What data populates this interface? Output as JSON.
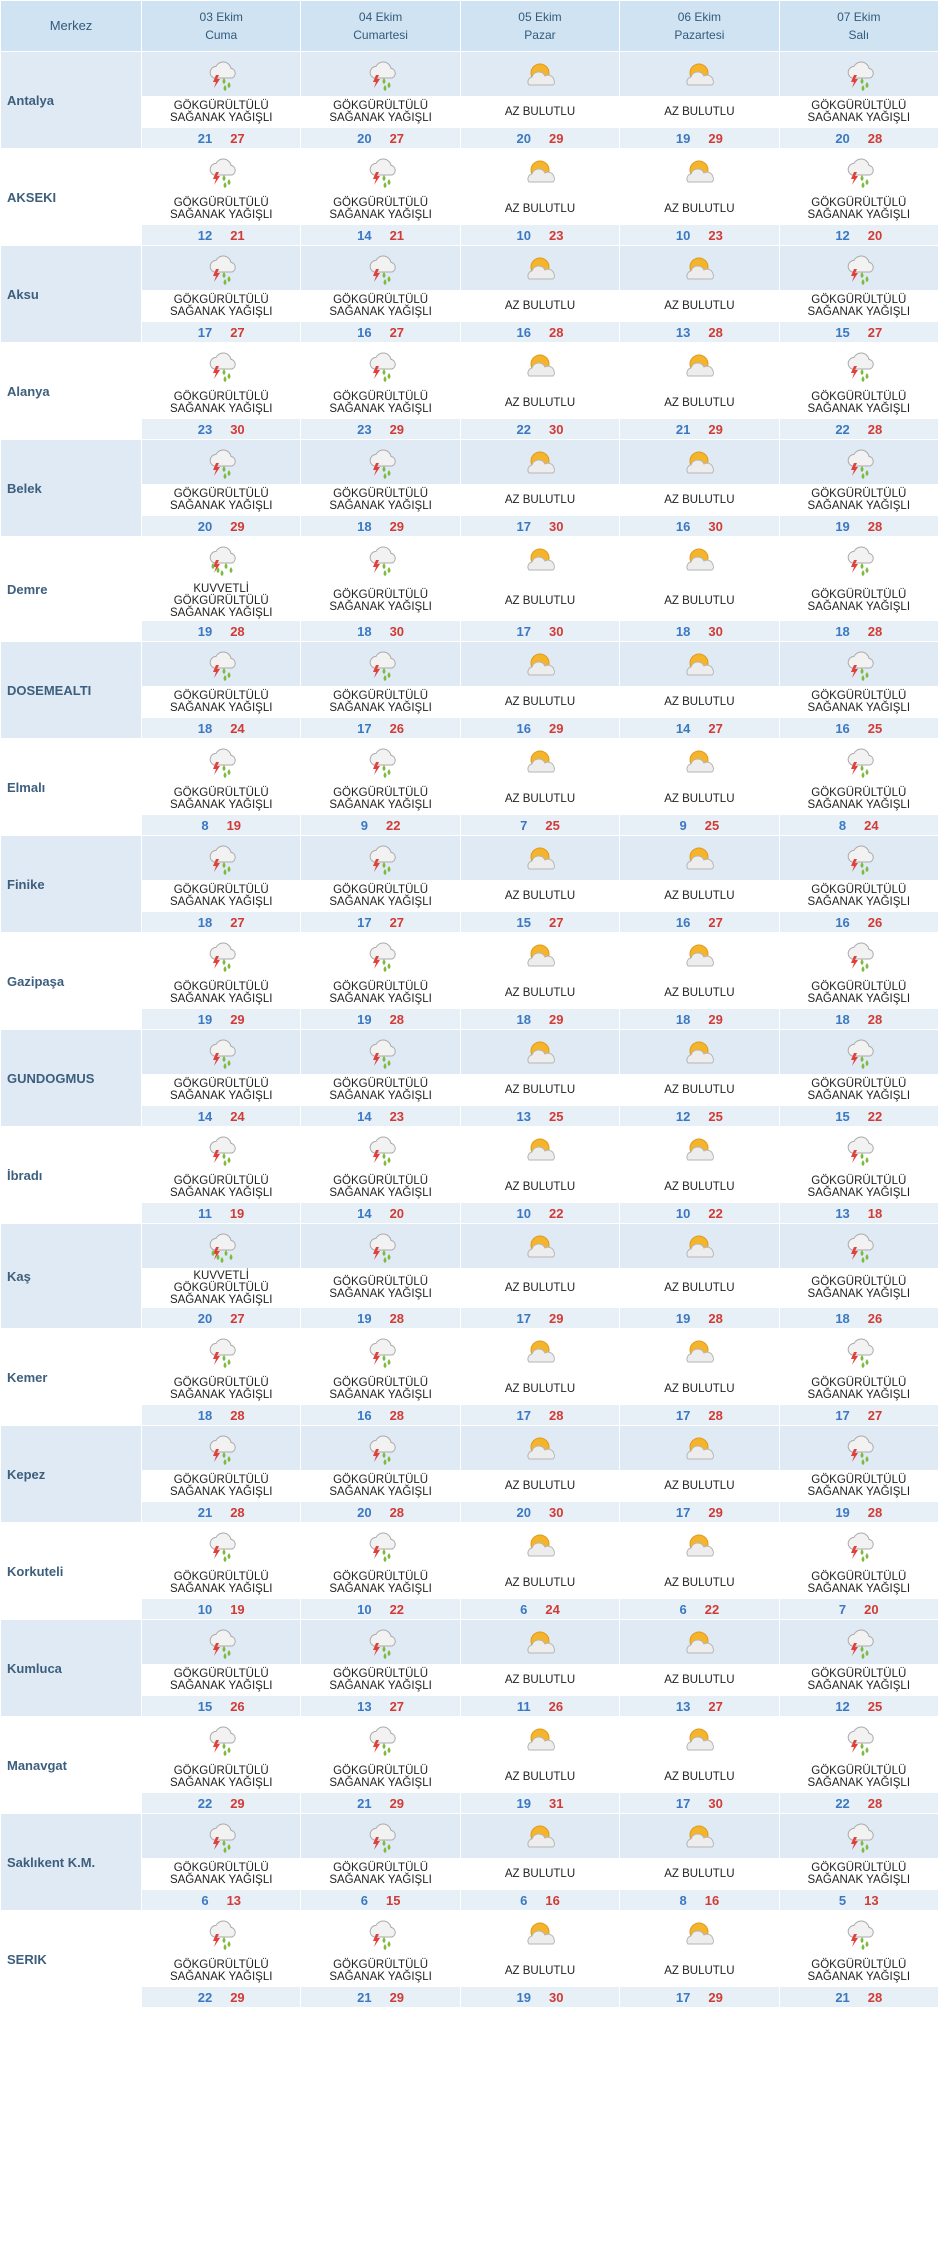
{
  "header": {
    "merkez_label": "Merkez",
    "days": [
      {
        "date": "03 Ekim",
        "name": "Cuma"
      },
      {
        "date": "04 Ekim",
        "name": "Cumartesi"
      },
      {
        "date": "05 Ekim",
        "name": "Pazar"
      },
      {
        "date": "06 Ekim",
        "name": "Pazartesi"
      },
      {
        "date": "07 Ekim",
        "name": "Salı"
      }
    ]
  },
  "conditions": {
    "gsy": {
      "icon": "thunderstorm-rain-icon",
      "lines": [
        "GÖKGÜRÜLTÜLÜ",
        "SAĞANAK YAĞIŞLI"
      ]
    },
    "ab": {
      "icon": "partly-cloudy-sun-icon",
      "lines": [
        "AZ BULUTLU"
      ]
    },
    "kgsy": {
      "icon": "heavy-thunderstorm-rain-icon",
      "lines": [
        "KUVVETLİ",
        "GÖKGÜRÜLTÜLÜ",
        "SAĞANAK YAĞIŞLI"
      ]
    }
  },
  "colors": {
    "min_temp": "#3a78c2",
    "max_temp": "#d03b35",
    "lightning": "#e0413a",
    "rain": "#7dbb3c",
    "sun": "#f4b42c"
  },
  "cities": [
    {
      "name": "Antalya",
      "days": [
        {
          "cond": "gsy",
          "min": "21",
          "max": "27"
        },
        {
          "cond": "gsy",
          "min": "20",
          "max": "27"
        },
        {
          "cond": "ab",
          "min": "20",
          "max": "29"
        },
        {
          "cond": "ab",
          "min": "19",
          "max": "29"
        },
        {
          "cond": "gsy",
          "min": "20",
          "max": "28"
        }
      ]
    },
    {
      "name": "AKSEKI",
      "days": [
        {
          "cond": "gsy",
          "min": "12",
          "max": "21"
        },
        {
          "cond": "gsy",
          "min": "14",
          "max": "21"
        },
        {
          "cond": "ab",
          "min": "10",
          "max": "23"
        },
        {
          "cond": "ab",
          "min": "10",
          "max": "23"
        },
        {
          "cond": "gsy",
          "min": "12",
          "max": "20"
        }
      ]
    },
    {
      "name": "Aksu",
      "days": [
        {
          "cond": "gsy",
          "min": "17",
          "max": "27"
        },
        {
          "cond": "gsy",
          "min": "16",
          "max": "27"
        },
        {
          "cond": "ab",
          "min": "16",
          "max": "28"
        },
        {
          "cond": "ab",
          "min": "13",
          "max": "28"
        },
        {
          "cond": "gsy",
          "min": "15",
          "max": "27"
        }
      ]
    },
    {
      "name": "Alanya",
      "days": [
        {
          "cond": "gsy",
          "min": "23",
          "max": "30"
        },
        {
          "cond": "gsy",
          "min": "23",
          "max": "29"
        },
        {
          "cond": "ab",
          "min": "22",
          "max": "30"
        },
        {
          "cond": "ab",
          "min": "21",
          "max": "29"
        },
        {
          "cond": "gsy",
          "min": "22",
          "max": "28"
        }
      ]
    },
    {
      "name": "Belek",
      "days": [
        {
          "cond": "gsy",
          "min": "20",
          "max": "29"
        },
        {
          "cond": "gsy",
          "min": "18",
          "max": "29"
        },
        {
          "cond": "ab",
          "min": "17",
          "max": "30"
        },
        {
          "cond": "ab",
          "min": "16",
          "max": "30"
        },
        {
          "cond": "gsy",
          "min": "19",
          "max": "28"
        }
      ]
    },
    {
      "name": "Demre",
      "days": [
        {
          "cond": "kgsy",
          "min": "19",
          "max": "28"
        },
        {
          "cond": "gsy",
          "min": "18",
          "max": "30"
        },
        {
          "cond": "ab",
          "min": "17",
          "max": "30"
        },
        {
          "cond": "ab",
          "min": "18",
          "max": "30"
        },
        {
          "cond": "gsy",
          "min": "18",
          "max": "28"
        }
      ]
    },
    {
      "name": "DOSEMEALTI",
      "days": [
        {
          "cond": "gsy",
          "min": "18",
          "max": "24"
        },
        {
          "cond": "gsy",
          "min": "17",
          "max": "26"
        },
        {
          "cond": "ab",
          "min": "16",
          "max": "29"
        },
        {
          "cond": "ab",
          "min": "14",
          "max": "27"
        },
        {
          "cond": "gsy",
          "min": "16",
          "max": "25"
        }
      ]
    },
    {
      "name": "Elmalı",
      "days": [
        {
          "cond": "gsy",
          "min": "8",
          "max": "19"
        },
        {
          "cond": "gsy",
          "min": "9",
          "max": "22"
        },
        {
          "cond": "ab",
          "min": "7",
          "max": "25"
        },
        {
          "cond": "ab",
          "min": "9",
          "max": "25"
        },
        {
          "cond": "gsy",
          "min": "8",
          "max": "24"
        }
      ]
    },
    {
      "name": "Finike",
      "days": [
        {
          "cond": "gsy",
          "min": "18",
          "max": "27"
        },
        {
          "cond": "gsy",
          "min": "17",
          "max": "27"
        },
        {
          "cond": "ab",
          "min": "15",
          "max": "27"
        },
        {
          "cond": "ab",
          "min": "16",
          "max": "27"
        },
        {
          "cond": "gsy",
          "min": "16",
          "max": "26"
        }
      ]
    },
    {
      "name": "Gazipaşa",
      "days": [
        {
          "cond": "gsy",
          "min": "19",
          "max": "29"
        },
        {
          "cond": "gsy",
          "min": "19",
          "max": "28"
        },
        {
          "cond": "ab",
          "min": "18",
          "max": "29"
        },
        {
          "cond": "ab",
          "min": "18",
          "max": "29"
        },
        {
          "cond": "gsy",
          "min": "18",
          "max": "28"
        }
      ]
    },
    {
      "name": "GUNDOGMUS",
      "days": [
        {
          "cond": "gsy",
          "min": "14",
          "max": "24"
        },
        {
          "cond": "gsy",
          "min": "14",
          "max": "23"
        },
        {
          "cond": "ab",
          "min": "13",
          "max": "25"
        },
        {
          "cond": "ab",
          "min": "12",
          "max": "25"
        },
        {
          "cond": "gsy",
          "min": "15",
          "max": "22"
        }
      ]
    },
    {
      "name": "İbradı",
      "days": [
        {
          "cond": "gsy",
          "min": "11",
          "max": "19"
        },
        {
          "cond": "gsy",
          "min": "14",
          "max": "20"
        },
        {
          "cond": "ab",
          "min": "10",
          "max": "22"
        },
        {
          "cond": "ab",
          "min": "10",
          "max": "22"
        },
        {
          "cond": "gsy",
          "min": "13",
          "max": "18"
        }
      ]
    },
    {
      "name": "Kaş",
      "days": [
        {
          "cond": "kgsy",
          "min": "20",
          "max": "27"
        },
        {
          "cond": "gsy",
          "min": "19",
          "max": "28"
        },
        {
          "cond": "ab",
          "min": "17",
          "max": "29"
        },
        {
          "cond": "ab",
          "min": "19",
          "max": "28"
        },
        {
          "cond": "gsy",
          "min": "18",
          "max": "26"
        }
      ]
    },
    {
      "name": "Kemer",
      "days": [
        {
          "cond": "gsy",
          "min": "18",
          "max": "28"
        },
        {
          "cond": "gsy",
          "min": "16",
          "max": "28"
        },
        {
          "cond": "ab",
          "min": "17",
          "max": "28"
        },
        {
          "cond": "ab",
          "min": "17",
          "max": "28"
        },
        {
          "cond": "gsy",
          "min": "17",
          "max": "27"
        }
      ]
    },
    {
      "name": "Kepez",
      "days": [
        {
          "cond": "gsy",
          "min": "21",
          "max": "28"
        },
        {
          "cond": "gsy",
          "min": "20",
          "max": "28"
        },
        {
          "cond": "ab",
          "min": "20",
          "max": "30"
        },
        {
          "cond": "ab",
          "min": "17",
          "max": "29"
        },
        {
          "cond": "gsy",
          "min": "19",
          "max": "28"
        }
      ]
    },
    {
      "name": "Korkuteli",
      "days": [
        {
          "cond": "gsy",
          "min": "10",
          "max": "19"
        },
        {
          "cond": "gsy",
          "min": "10",
          "max": "22"
        },
        {
          "cond": "ab",
          "min": "6",
          "max": "24"
        },
        {
          "cond": "ab",
          "min": "6",
          "max": "22"
        },
        {
          "cond": "gsy",
          "min": "7",
          "max": "20"
        }
      ]
    },
    {
      "name": "Kumluca",
      "days": [
        {
          "cond": "gsy",
          "min": "15",
          "max": "26"
        },
        {
          "cond": "gsy",
          "min": "13",
          "max": "27"
        },
        {
          "cond": "ab",
          "min": "11",
          "max": "26"
        },
        {
          "cond": "ab",
          "min": "13",
          "max": "27"
        },
        {
          "cond": "gsy",
          "min": "12",
          "max": "25"
        }
      ]
    },
    {
      "name": "Manavgat",
      "days": [
        {
          "cond": "gsy",
          "min": "22",
          "max": "29"
        },
        {
          "cond": "gsy",
          "min": "21",
          "max": "29"
        },
        {
          "cond": "ab",
          "min": "19",
          "max": "31"
        },
        {
          "cond": "ab",
          "min": "17",
          "max": "30"
        },
        {
          "cond": "gsy",
          "min": "22",
          "max": "28"
        }
      ]
    },
    {
      "name": "Saklıkent K.M.",
      "days": [
        {
          "cond": "gsy",
          "min": "6",
          "max": "13"
        },
        {
          "cond": "gsy",
          "min": "6",
          "max": "15"
        },
        {
          "cond": "ab",
          "min": "6",
          "max": "16"
        },
        {
          "cond": "ab",
          "min": "8",
          "max": "16"
        },
        {
          "cond": "gsy",
          "min": "5",
          "max": "13"
        }
      ]
    },
    {
      "name": "SERIK",
      "days": [
        {
          "cond": "gsy",
          "min": "22",
          "max": "29"
        },
        {
          "cond": "gsy",
          "min": "21",
          "max": "29"
        },
        {
          "cond": "ab",
          "min": "19",
          "max": "30"
        },
        {
          "cond": "ab",
          "min": "17",
          "max": "29"
        },
        {
          "cond": "gsy",
          "min": "21",
          "max": "28"
        }
      ]
    }
  ]
}
